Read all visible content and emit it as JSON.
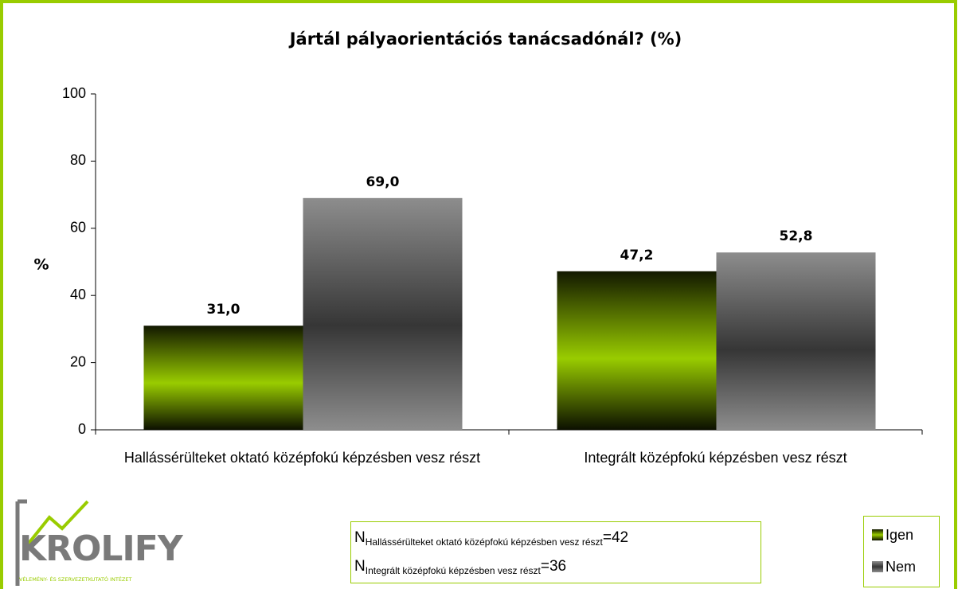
{
  "chart_data": {
    "type": "bar",
    "title": "Jártál pályaorientációs tanácsadónál?  (%)",
    "y_label": "%",
    "categories": [
      "Hallássérülteket oktató középfokú képzésben vesz részt",
      "Integrált középfokú képzésben vesz részt"
    ],
    "series": [
      {
        "name": "Igen",
        "color": "#99cc00",
        "values": [
          31.0,
          47.2
        ],
        "value_labels": [
          "31,0",
          "47,2"
        ]
      },
      {
        "name": "Nem",
        "color": "#808080",
        "values": [
          69.0,
          52.8
        ],
        "value_labels": [
          "69,0",
          "52,8"
        ]
      }
    ],
    "ylim": [
      0,
      100
    ],
    "yticks": [
      0,
      20,
      40,
      60,
      80,
      100
    ],
    "grid": false,
    "legend": "lower right"
  },
  "sample_sizes": [
    {
      "symbol": "N",
      "group": "Hallássérülteket oktató középfokú képzésben vesz részt",
      "count": "=42"
    },
    {
      "symbol": "N",
      "group": "Integrált középfokú képzésben vesz részt",
      "count": "=36"
    }
  ],
  "logo": {
    "name": "KROLIFY",
    "tagline": "VÉLEMÉNY- ÉS SZERVEZETKUTATÓ INTÉZET"
  }
}
